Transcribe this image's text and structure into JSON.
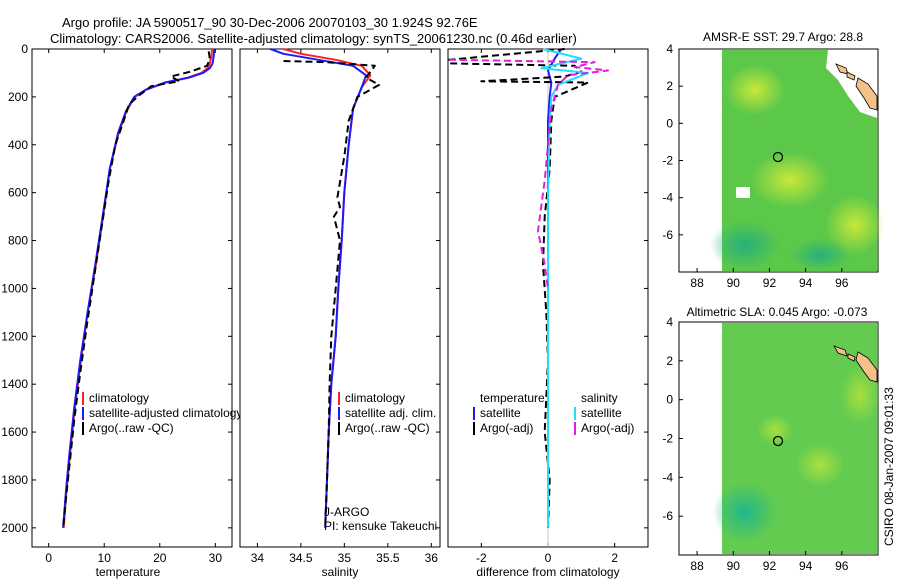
{
  "header": {
    "line1": "Argo profile: JA 5900517_90 30-Dec-2006 20070103_30 1.924S 92.76E",
    "line2": "Climatology: CARS2006. Satellite-adjusted climatology: synTS_20061230.nc (0.46d earlier)"
  },
  "side_label": "CSIRO 08-Jan-2007 09:01:33",
  "colors": {
    "climatology": "#ff2020",
    "satellite": "#1a1aff",
    "argo": "#000000",
    "salinity_satellite": "#22ddff",
    "salinity_argo": "#e020e0",
    "land": "#f5c08a"
  },
  "chart_data": [
    {
      "type": "line",
      "title": "",
      "xlabel": "temperature",
      "ylabel": "",
      "xlim": [
        -3,
        33
      ],
      "ylim": [
        2080,
        0
      ],
      "xticks": [
        0,
        10,
        20,
        30
      ],
      "yticks": [
        0,
        200,
        400,
        600,
        800,
        1000,
        1200,
        1400,
        1600,
        1800,
        2000
      ],
      "legend": [
        "climatology",
        "satellite-adjusted climatology",
        "Argo(..raw -QC)"
      ],
      "series": [
        {
          "name": "climatology",
          "style": "solid",
          "color_key": "climatology",
          "x": [
            29.4,
            29.3,
            29.0,
            28.6,
            27.5,
            25.0,
            21.0,
            17.5,
            15.5,
            14.0,
            12.6,
            11.0,
            9.8,
            8.5,
            7.0,
            5.8,
            4.7,
            3.8,
            3.2,
            2.7
          ],
          "y": [
            0,
            30,
            60,
            80,
            100,
            120,
            140,
            170,
            200,
            260,
            350,
            500,
            700,
            900,
            1100,
            1300,
            1500,
            1700,
            1850,
            2000
          ]
        },
        {
          "name": "satellite-adjusted climatology",
          "style": "solid",
          "color_key": "satellite",
          "x": [
            29.8,
            29.7,
            29.5,
            29.0,
            27.8,
            25.2,
            21.0,
            17.5,
            15.4,
            13.9,
            12.5,
            11.0,
            9.7,
            8.4,
            7.0,
            5.7,
            4.6,
            3.7,
            3.1,
            2.6
          ],
          "y": [
            0,
            30,
            60,
            80,
            100,
            120,
            140,
            170,
            200,
            260,
            350,
            500,
            700,
            900,
            1100,
            1300,
            1500,
            1700,
            1850,
            2000
          ]
        },
        {
          "name": "Argo(..raw -QC)",
          "style": "dashed",
          "color_key": "argo",
          "x": [
            28.8,
            29.0,
            28.5,
            25.5,
            22.0,
            23.5,
            18.5,
            16.5,
            14.5,
            13.5,
            12.0,
            10.8,
            9.5,
            8.2,
            6.9,
            5.7,
            4.6,
            3.7,
            3.1,
            2.6
          ],
          "y": [
            10,
            40,
            70,
            95,
            115,
            135,
            155,
            190,
            230,
            300,
            400,
            550,
            750,
            950,
            1150,
            1350,
            1550,
            1750,
            1880,
            2000
          ]
        }
      ]
    },
    {
      "type": "line",
      "title": "",
      "xlabel": "salinity",
      "ylabel": "",
      "xlim": [
        33.8,
        36.1
      ],
      "ylim": [
        2080,
        0
      ],
      "xticks": [
        34,
        34.5,
        35,
        35.5,
        36
      ],
      "legend": [
        "climatology",
        "satellite adj. clim.",
        "Argo(..raw -QC)"
      ],
      "annotations": [
        "J-ARGO",
        "PI: kensuke Takeuchi"
      ],
      "series": [
        {
          "name": "climatology",
          "style": "solid",
          "color_key": "climatology",
          "x": [
            34.3,
            34.5,
            34.9,
            35.2,
            35.3,
            35.2,
            35.1,
            35.05,
            35.0,
            34.97,
            34.93,
            34.9,
            34.85,
            34.82,
            34.8,
            34.78
          ],
          "y": [
            0,
            20,
            45,
            70,
            110,
            160,
            250,
            400,
            600,
            800,
            1000,
            1200,
            1400,
            1600,
            1800,
            2000
          ]
        },
        {
          "name": "satellite adj. clim.",
          "style": "solid",
          "color_key": "satellite",
          "x": [
            34.15,
            34.3,
            34.7,
            35.1,
            35.25,
            35.2,
            35.1,
            35.05,
            35.0,
            34.97,
            34.93,
            34.9,
            34.85,
            34.82,
            34.8,
            34.78
          ],
          "y": [
            0,
            20,
            45,
            70,
            110,
            160,
            250,
            400,
            600,
            800,
            1000,
            1200,
            1400,
            1600,
            1800,
            2000
          ]
        },
        {
          "name": "Argo(..raw -QC)",
          "style": "dashed",
          "color_key": "argo",
          "x": [
            34.3,
            34.8,
            35.35,
            35.25,
            35.4,
            35.15,
            35.05,
            35.0,
            34.92,
            34.95,
            34.88,
            34.95,
            34.9,
            34.85,
            34.83,
            34.82,
            34.8,
            34.78
          ],
          "y": [
            50,
            55,
            70,
            120,
            150,
            200,
            300,
            450,
            620,
            660,
            700,
            800,
            1000,
            1200,
            1400,
            1600,
            1800,
            2000
          ]
        }
      ]
    },
    {
      "type": "line",
      "title": "",
      "xlabel": "difference from climatology",
      "ylabel": "",
      "xlim": [
        -3,
        3
      ],
      "ylim": [
        2080,
        0
      ],
      "xticks": [
        -2,
        0,
        2
      ],
      "legend": [
        "temperature",
        "satellite",
        "Argo(-adj)",
        "salinity",
        "satellite",
        "Argo(-adj)"
      ],
      "series": [
        {
          "name": "temperature satellite",
          "style": "solid",
          "color_key": "satellite",
          "x": [
            0.4,
            0.2,
            0.0,
            0.1,
            0.05,
            0.0,
            0.0,
            0.0,
            0.0,
            0.0,
            0.0
          ],
          "y": [
            0,
            40,
            90,
            140,
            200,
            300,
            600,
            1000,
            1400,
            1800,
            2000
          ]
        },
        {
          "name": "temperature Argo(-adj)",
          "style": "dashed",
          "color_key": "argo",
          "x": [
            0.5,
            -3.0,
            -3.0,
            0.8,
            1.0,
            0.5,
            -2.0,
            1.2,
            0.2,
            0.1,
            0.05,
            -0.1,
            -0.15,
            -0.05,
            0.0,
            -0.1,
            0.05,
            0.0
          ],
          "y": [
            0,
            45,
            60,
            70,
            95,
            115,
            135,
            140,
            200,
            300,
            500,
            700,
            900,
            1100,
            1300,
            1600,
            1800,
            2000
          ]
        },
        {
          "name": "salinity satellite",
          "style": "solid",
          "color_key": "salinity_satellite",
          "x": [
            -0.15,
            1.0,
            -0.2,
            1.2,
            0.3,
            0.1,
            0.05,
            0.0,
            0.0,
            0.0,
            0.0
          ],
          "y": [
            0,
            40,
            80,
            100,
            150,
            200,
            300,
            600,
            1000,
            1500,
            2000
          ]
        },
        {
          "name": "salinity Argo(-adj)",
          "style": "dashed",
          "color_key": "salinity_argo",
          "x": [
            -3.0,
            1.4,
            0.8,
            1.8,
            0.6,
            0.3,
            0.1,
            -0.1,
            -0.3,
            -0.1,
            0.0
          ],
          "y": [
            45,
            55,
            75,
            90,
            110,
            150,
            250,
            550,
            760,
            900,
            1000
          ]
        }
      ]
    },
    {
      "type": "heatmap",
      "title": "AMSR-E SST: 29.7 Argo: 28.8",
      "xlim": [
        87,
        98
      ],
      "ylim": [
        -8,
        4
      ],
      "xticks": [
        88,
        90,
        92,
        94,
        96
      ],
      "yticks": [
        4,
        2,
        0,
        -2,
        -4,
        -6
      ],
      "argo_position": {
        "lon": 92.76,
        "lat": -1.924
      }
    },
    {
      "type": "heatmap",
      "title": "Altimetric SLA: 0.045 Argo: -0.073",
      "xlim": [
        87,
        98
      ],
      "ylim": [
        -8,
        4
      ],
      "xticks": [
        88,
        90,
        92,
        94,
        96
      ],
      "yticks": [
        4,
        2,
        0,
        -2,
        -4,
        -6
      ],
      "argo_position": {
        "lon": 92.76,
        "lat": -1.924
      }
    }
  ]
}
